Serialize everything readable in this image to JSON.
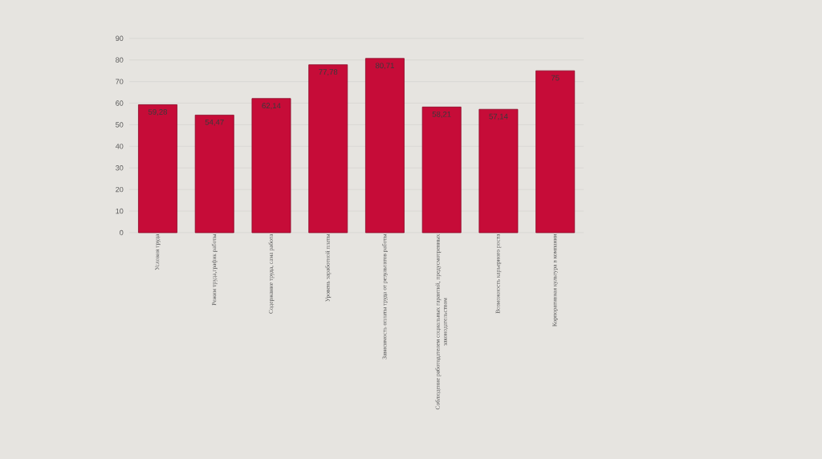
{
  "chart_data": {
    "type": "bar",
    "categories": [
      "Условия труда",
      "Режим труда,график работы",
      "Содержание труда, сама работа",
      "Уровень заработной платы",
      "Зависимость оплаты труда от результатов работы",
      "Соблюдение работодателем социальных гарантий, предусмотренных законодательством",
      "Возможность карьерного роста",
      "Корпоративная культура в компании"
    ],
    "values": [
      59.28,
      54.47,
      62.14,
      77.78,
      80.71,
      58.21,
      57.14,
      75
    ],
    "value_labels": [
      "59,28",
      "54,47",
      "62,14",
      "77,78",
      "80,71",
      "58,21",
      "57,14",
      "75"
    ],
    "color": "#c60c38",
    "ylim": [
      0,
      90
    ],
    "yticks": [
      0,
      10,
      20,
      30,
      40,
      50,
      60,
      70,
      80,
      90
    ],
    "grid": "y"
  }
}
